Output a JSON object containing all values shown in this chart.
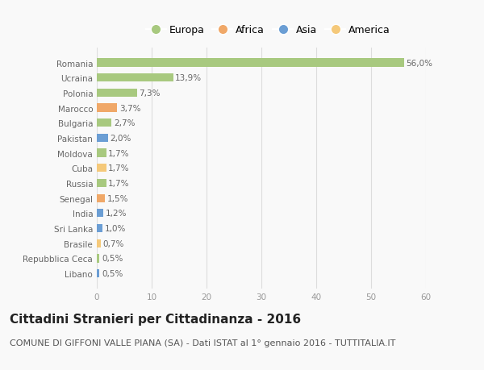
{
  "categories": [
    "Libano",
    "Repubblica Ceca",
    "Brasile",
    "Sri Lanka",
    "India",
    "Senegal",
    "Russia",
    "Cuba",
    "Moldova",
    "Pakistan",
    "Bulgaria",
    "Marocco",
    "Polonia",
    "Ucraina",
    "Romania"
  ],
  "values": [
    0.5,
    0.5,
    0.7,
    1.0,
    1.2,
    1.5,
    1.7,
    1.7,
    1.7,
    2.0,
    2.7,
    3.7,
    7.3,
    13.9,
    56.0
  ],
  "labels": [
    "0,5%",
    "0,5%",
    "0,7%",
    "1,0%",
    "1,2%",
    "1,5%",
    "1,7%",
    "1,7%",
    "1,7%",
    "2,0%",
    "2,7%",
    "3,7%",
    "7,3%",
    "13,9%",
    "56,0%"
  ],
  "colors": [
    "#6b9ed4",
    "#a8c97f",
    "#f5c97a",
    "#6b9ed4",
    "#6b9ed4",
    "#f0a868",
    "#a8c97f",
    "#f5c97a",
    "#a8c97f",
    "#6b9ed4",
    "#a8c97f",
    "#f0a868",
    "#a8c97f",
    "#a8c97f",
    "#a8c97f"
  ],
  "legend_labels": [
    "Europa",
    "Africa",
    "Asia",
    "America"
  ],
  "legend_colors": [
    "#a8c97f",
    "#f0a868",
    "#6b9ed4",
    "#f5c97a"
  ],
  "title": "Cittadini Stranieri per Cittadinanza - 2016",
  "subtitle": "COMUNE DI GIFFONI VALLE PIANA (SA) - Dati ISTAT al 1° gennaio 2016 - TUTTITALIA.IT",
  "xlim": [
    0,
    60
  ],
  "xticks": [
    0,
    10,
    20,
    30,
    40,
    50,
    60
  ],
  "background_color": "#f9f9f9",
  "bar_height": 0.55,
  "title_fontsize": 11,
  "subtitle_fontsize": 8,
  "label_fontsize": 7.5,
  "tick_fontsize": 7.5,
  "legend_fontsize": 9
}
